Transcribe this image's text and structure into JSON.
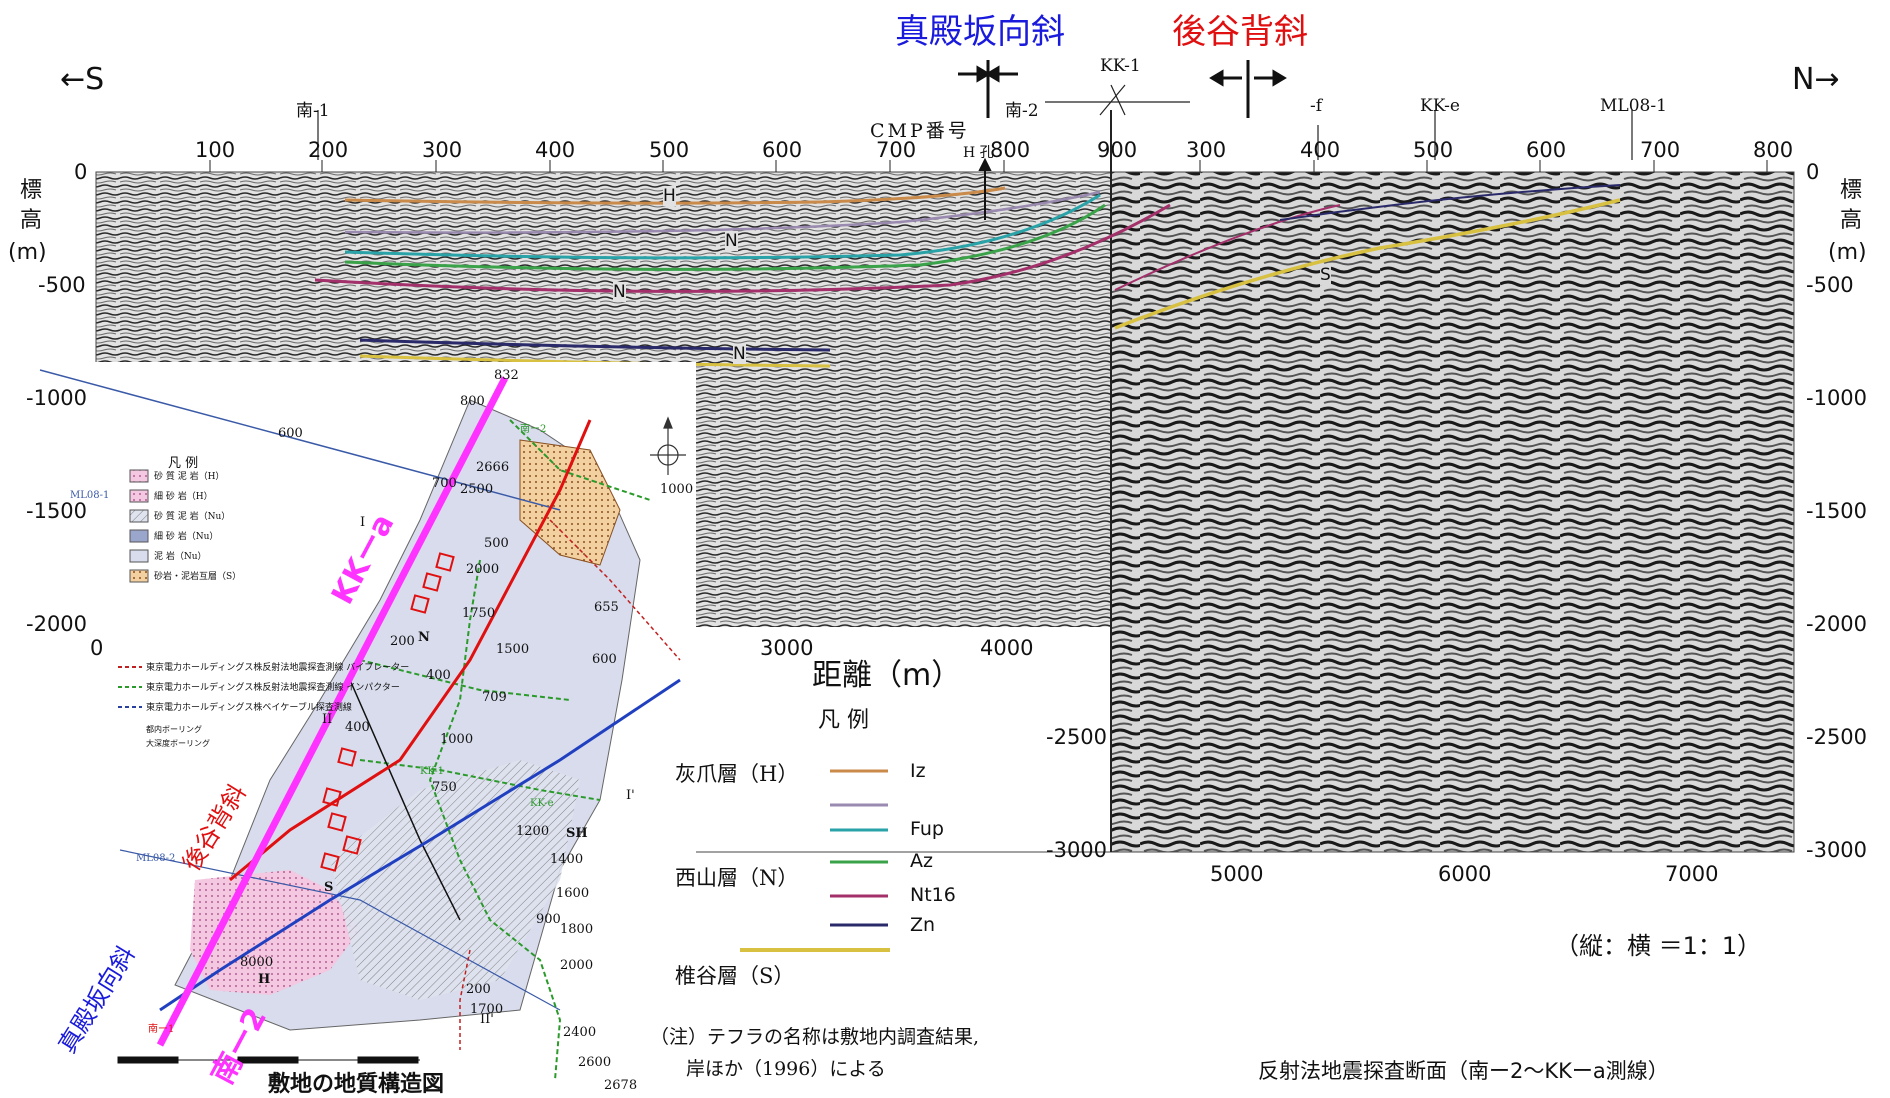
{
  "directions": {
    "south": "←S",
    "north": "N→"
  },
  "features": {
    "syncline": "真殿坂向斜",
    "anticline": "後谷背斜"
  },
  "colors": {
    "syncline": "#1a1adc",
    "anticline": "#e01010",
    "magenta": "#ff33ff",
    "Iz": "#c98a4a",
    "Fup": "#2aa3a8",
    "Az": "#3aa34a",
    "Nt16": "#a3306a",
    "Zn": "#2a2a6a",
    "S": "#d8c040",
    "H_gray": "#9a8ab0"
  },
  "profile": {
    "cmp_title": "CMP番号",
    "line_labels": [
      "南-1",
      "南-2",
      "KK-1",
      "-f",
      "KK-e",
      "ML08-1"
    ],
    "h_hole": "H 孔",
    "cmp_ticks_left": [
      "100",
      "200",
      "300",
      "400",
      "500",
      "600",
      "700",
      "800",
      "900"
    ],
    "cmp_ticks_right": [
      "300",
      "400",
      "500",
      "600",
      "700",
      "800"
    ],
    "elev_label": [
      "標",
      "高",
      "(m)"
    ],
    "elev_ticks": [
      "0",
      "-500",
      "-1000",
      "-1500",
      "-2000",
      "-2500",
      "-3000"
    ],
    "dist_ticks": [
      "0",
      "3000",
      "4000",
      "5000",
      "6000",
      "7000"
    ],
    "dist_label": "距離（m）",
    "horizon_labels": [
      "H",
      "N",
      "N",
      "N",
      "S"
    ],
    "ratio": "（縦：横 ＝1：1）",
    "caption": "反射法地震探査断面（南ー2～KKーa測線）"
  },
  "legend": {
    "title": "凡 例",
    "formations": [
      {
        "name": "灰爪層（H）",
        "codes": [
          "Iz",
          ""
        ]
      },
      {
        "name": "西山層（N）",
        "codes": [
          "Fup",
          "Az",
          "Nt16",
          "Zn"
        ]
      },
      {
        "name": "椎谷層（S）",
        "codes": [
          ""
        ]
      }
    ],
    "note_line1": "（注）テフラの名称は敷地内調査結果,",
    "note_line2": "岸ほか（1996）による"
  },
  "map": {
    "title": "敷地の地質構造図",
    "kk_a": "KKーa",
    "minami2": "南ー2",
    "syncline_label": "真殿坂向斜",
    "anticline_label": "後谷背斜",
    "legend_title": "凡 例",
    "legend_rows": [
      "砂 質 泥 岩（H）",
      "細 砂 岩（H）",
      "砂 質 泥 岩（Nu）",
      "細 砂 岩（Nu）",
      "泥 岩（Nu）",
      "砂岩・泥岩互層（S）"
    ],
    "legend_lines": [
      "東京電力ホールディングス株反射法地震探査測線 バイブレーター",
      "東京電力ホールディングス株反射法地震探査測線 インパクター",
      "東京電力ホールディングス株ベイケーブル探査測線"
    ],
    "borings": [
      "都内ボーリング",
      "大深度ボーリング"
    ],
    "numbers": [
      "832",
      "800",
      "600",
      "1000",
      "2666",
      "2500",
      "500",
      "2000",
      "1750",
      "655",
      "1500",
      "400",
      "709",
      "600",
      "200",
      "750",
      "1000",
      "2678",
      "2600",
      "2400",
      "2000",
      "1800",
      "1600",
      "1400",
      "1200",
      "1700",
      "200",
      "400",
      "8000",
      "700",
      "900"
    ],
    "points": [
      "N",
      "SH",
      "S",
      "H",
      "I",
      "I'",
      "II",
      "II'"
    ],
    "lines": [
      "ML08-1",
      "ML08-2",
      "KK-e",
      "KK-1",
      "南ー1",
      "南ー2"
    ]
  }
}
